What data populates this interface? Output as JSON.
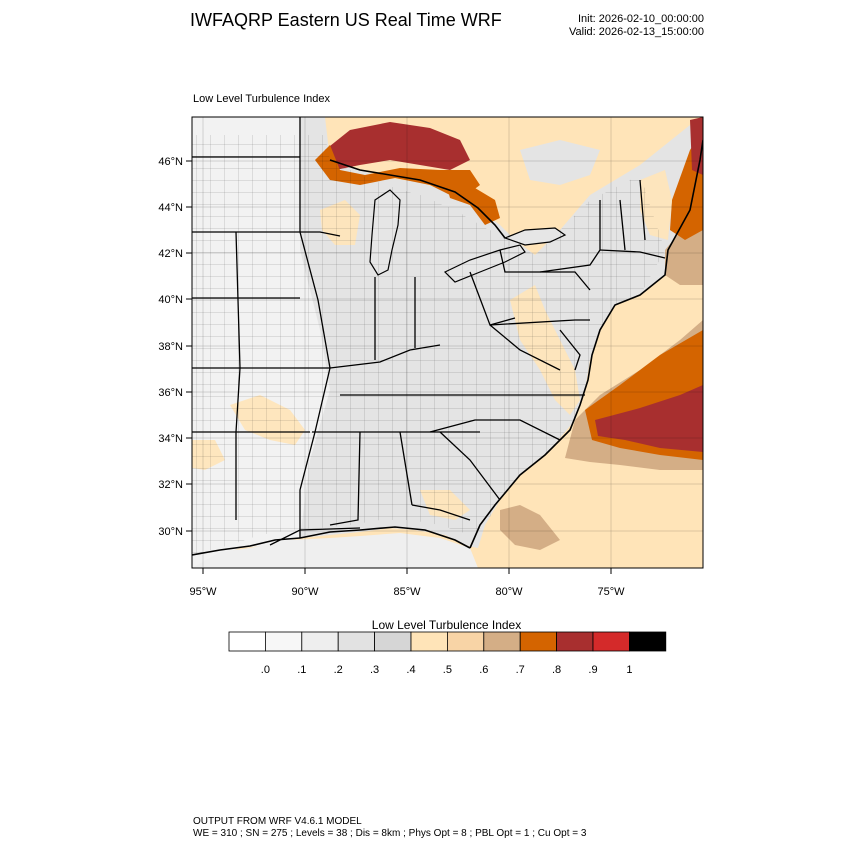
{
  "header": {
    "title": "IWFAQRP Eastern US Real Time WRF",
    "init": "Init: 2026-02-10_00:00:00",
    "valid": "Valid: 2026-02-13_15:00:00"
  },
  "map": {
    "field_label": "Low Level Turbulence Index",
    "lat_labels": [
      "46°N",
      "44°N",
      "42°N",
      "40°N",
      "38°N",
      "36°N",
      "34°N",
      "32°N",
      "30°N"
    ],
    "lon_labels": [
      "95°W",
      "90°W",
      "85°W",
      "80°W",
      "75°W"
    ]
  },
  "colorbar": {
    "title": "Low Level Turbulence Index",
    "colors": [
      "#ffffff",
      "#f7f7f7",
      "#eeeeee",
      "#e2e2e2",
      "#d6d6d6",
      "#ffe4b8",
      "#f8d4a6",
      "#d4ae86",
      "#d46400",
      "#a82f2f",
      "#d42a2a",
      "#000000"
    ],
    "tick_labels": [
      ".0",
      ".1",
      ".2",
      ".3",
      ".4",
      ".5",
      ".6",
      ".7",
      ".8",
      ".9",
      "1"
    ]
  },
  "footer": {
    "line1": "OUTPUT FROM WRF V4.6.1 MODEL",
    "line2": "WE = 310 ; SN = 275 ; Levels = 38 ; Dis = 8km ; Phys Opt = 8 ; PBL Opt = 1 ; Cu Opt = 3"
  }
}
